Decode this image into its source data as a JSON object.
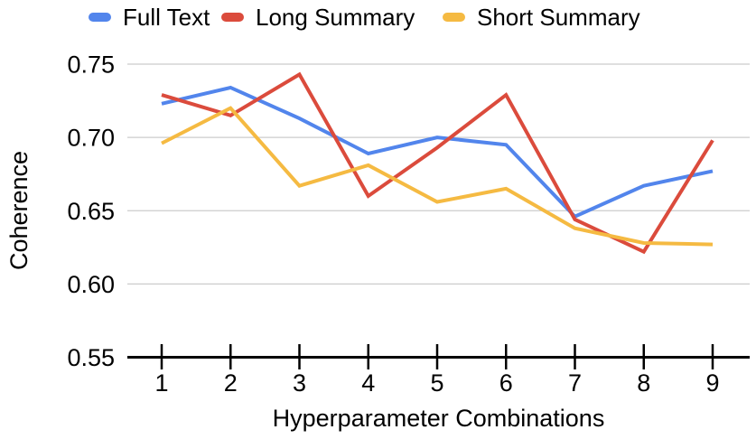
{
  "chart_data": {
    "type": "line",
    "title": "",
    "xlabel": "Hyperparameter Combinations",
    "ylabel": "Coherence",
    "categories": [
      "1",
      "2",
      "3",
      "4",
      "5",
      "6",
      "7",
      "8",
      "9"
    ],
    "series": [
      {
        "name": "Full Text",
        "color": "#5285EC",
        "values": [
          0.723,
          0.734,
          0.713,
          0.689,
          0.7,
          0.695,
          0.646,
          0.667,
          0.677
        ]
      },
      {
        "name": "Long Summary",
        "color": "#DB4B3C",
        "values": [
          0.729,
          0.715,
          0.743,
          0.66,
          0.693,
          0.729,
          0.644,
          0.622,
          0.698
        ]
      },
      {
        "name": "Short Summary",
        "color": "#F5BA42",
        "values": [
          0.696,
          0.72,
          0.667,
          0.681,
          0.656,
          0.665,
          0.638,
          0.628,
          0.627
        ]
      }
    ],
    "ylim": [
      0.55,
      0.75
    ],
    "yticks": [
      0.55,
      0.6,
      0.65,
      0.7,
      0.75
    ],
    "ytick_format_decimals": 2,
    "grid": "horizontal",
    "gridline_color": "#cccccc",
    "axis_color": "#000000",
    "legend_position": "top"
  }
}
